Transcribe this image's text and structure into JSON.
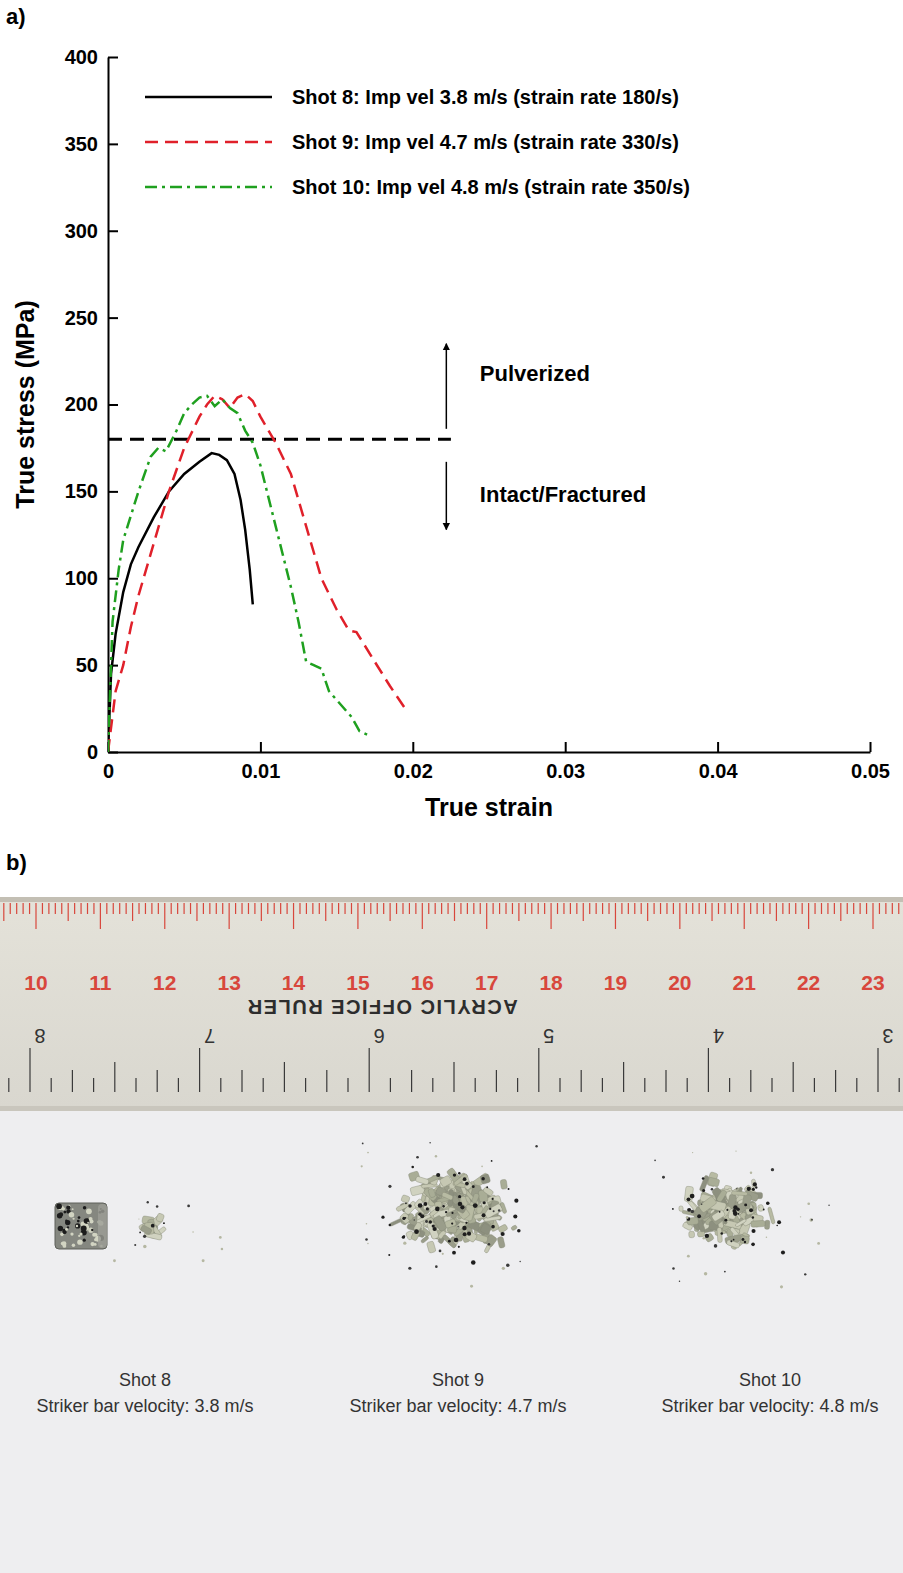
{
  "figure": {
    "panel_labels": [
      "a)",
      "b)"
    ]
  },
  "chart_data": {
    "type": "line",
    "xlabel": "True strain",
    "ylabel": "True stress (MPa)",
    "xlim": [
      0,
      0.05
    ],
    "ylim": [
      0,
      400
    ],
    "xticks": [
      0,
      0.01,
      0.02,
      0.03,
      0.04,
      0.05
    ],
    "yticks": [
      0,
      50,
      100,
      150,
      200,
      250,
      300,
      350,
      400
    ],
    "legend": "top-left",
    "series": [
      {
        "name": "Shot 8: Imp vel 3.8 m/s (strain rate 180/s)",
        "color": "#000000",
        "line_style": "solid",
        "x": [
          0,
          0.0002,
          0.0005,
          0.001,
          0.0015,
          0.002,
          0.003,
          0.004,
          0.005,
          0.006,
          0.0068,
          0.0073,
          0.0078,
          0.0083,
          0.0087,
          0.009,
          0.0093,
          0.0095
        ],
        "values": [
          0,
          45,
          68,
          92,
          108,
          118,
          135,
          150,
          160,
          167,
          172,
          171,
          168,
          160,
          145,
          128,
          105,
          85
        ]
      },
      {
        "name": "Shot 9: Imp vel 4.7 m/s (strain rate 330/s)",
        "color": "#e0202a",
        "line_style": "dashed",
        "x": [
          0,
          0.0005,
          0.001,
          0.0015,
          0.002,
          0.003,
          0.004,
          0.005,
          0.006,
          0.0065,
          0.007,
          0.0075,
          0.008,
          0.0085,
          0.009,
          0.0095,
          0.01,
          0.011,
          0.012,
          0.013,
          0.014,
          0.015,
          0.0158,
          0.0163,
          0.0168,
          0.0175,
          0.0185,
          0.0195
        ],
        "values": [
          0,
          35,
          50,
          72,
          90,
          120,
          150,
          175,
          193,
          200,
          205,
          203,
          198,
          204,
          206,
          202,
          193,
          178,
          160,
          130,
          100,
          82,
          70,
          69,
          62,
          52,
          38,
          25
        ]
      },
      {
        "name": "Shot 10: Imp vel 4.8 m/s (strain rate 350/s)",
        "color": "#1fa01f",
        "line_style": "dashdot",
        "x": [
          0,
          0.0003,
          0.0007,
          0.001,
          0.002,
          0.0028,
          0.0033,
          0.0038,
          0.0045,
          0.005,
          0.0055,
          0.006,
          0.0065,
          0.007,
          0.0075,
          0.008,
          0.0085,
          0.009,
          0.0095,
          0.01,
          0.011,
          0.012,
          0.0125,
          0.013,
          0.0135,
          0.014,
          0.0145,
          0.015,
          0.016,
          0.0165,
          0.017
        ],
        "values": [
          0,
          75,
          105,
          122,
          150,
          170,
          175,
          173,
          185,
          195,
          200,
          204,
          205,
          199,
          203,
          198,
          195,
          185,
          178,
          165,
          130,
          95,
          75,
          52,
          50,
          48,
          35,
          30,
          20,
          12,
          10
        ]
      }
    ],
    "threshold": {
      "value": 180,
      "x": [
        0,
        0.0225
      ]
    },
    "annotations": [
      {
        "text": "Pulverized",
        "x": 0.0244,
        "y": 218,
        "arrow": {
          "x": 0.0222,
          "y": [
            186,
            235
          ]
        }
      },
      {
        "text": "Intact/Fractured",
        "x": 0.0244,
        "y": 148.5,
        "arrow": {
          "x": 0.0222,
          "y": [
            167,
            128
          ]
        }
      }
    ]
  },
  "photo": {
    "ruler": {
      "cm_labels": [
        10,
        11,
        12,
        13,
        14,
        15,
        16,
        17,
        18,
        19,
        20,
        21,
        22,
        23
      ],
      "brand": "ACRYLIC OFFICE RULER",
      "inch_labels": [
        8,
        7,
        6,
        5,
        4,
        3
      ]
    },
    "specimens": [
      {
        "shot": "Shot 8",
        "caption": "Striker bar velocity: 3.8 m/s"
      },
      {
        "shot": "Shot 9",
        "caption": "Striker bar velocity: 4.7 m/s"
      },
      {
        "shot": "Shot 10",
        "caption": "Striker bar velocity: 4.8 m/s"
      }
    ]
  }
}
